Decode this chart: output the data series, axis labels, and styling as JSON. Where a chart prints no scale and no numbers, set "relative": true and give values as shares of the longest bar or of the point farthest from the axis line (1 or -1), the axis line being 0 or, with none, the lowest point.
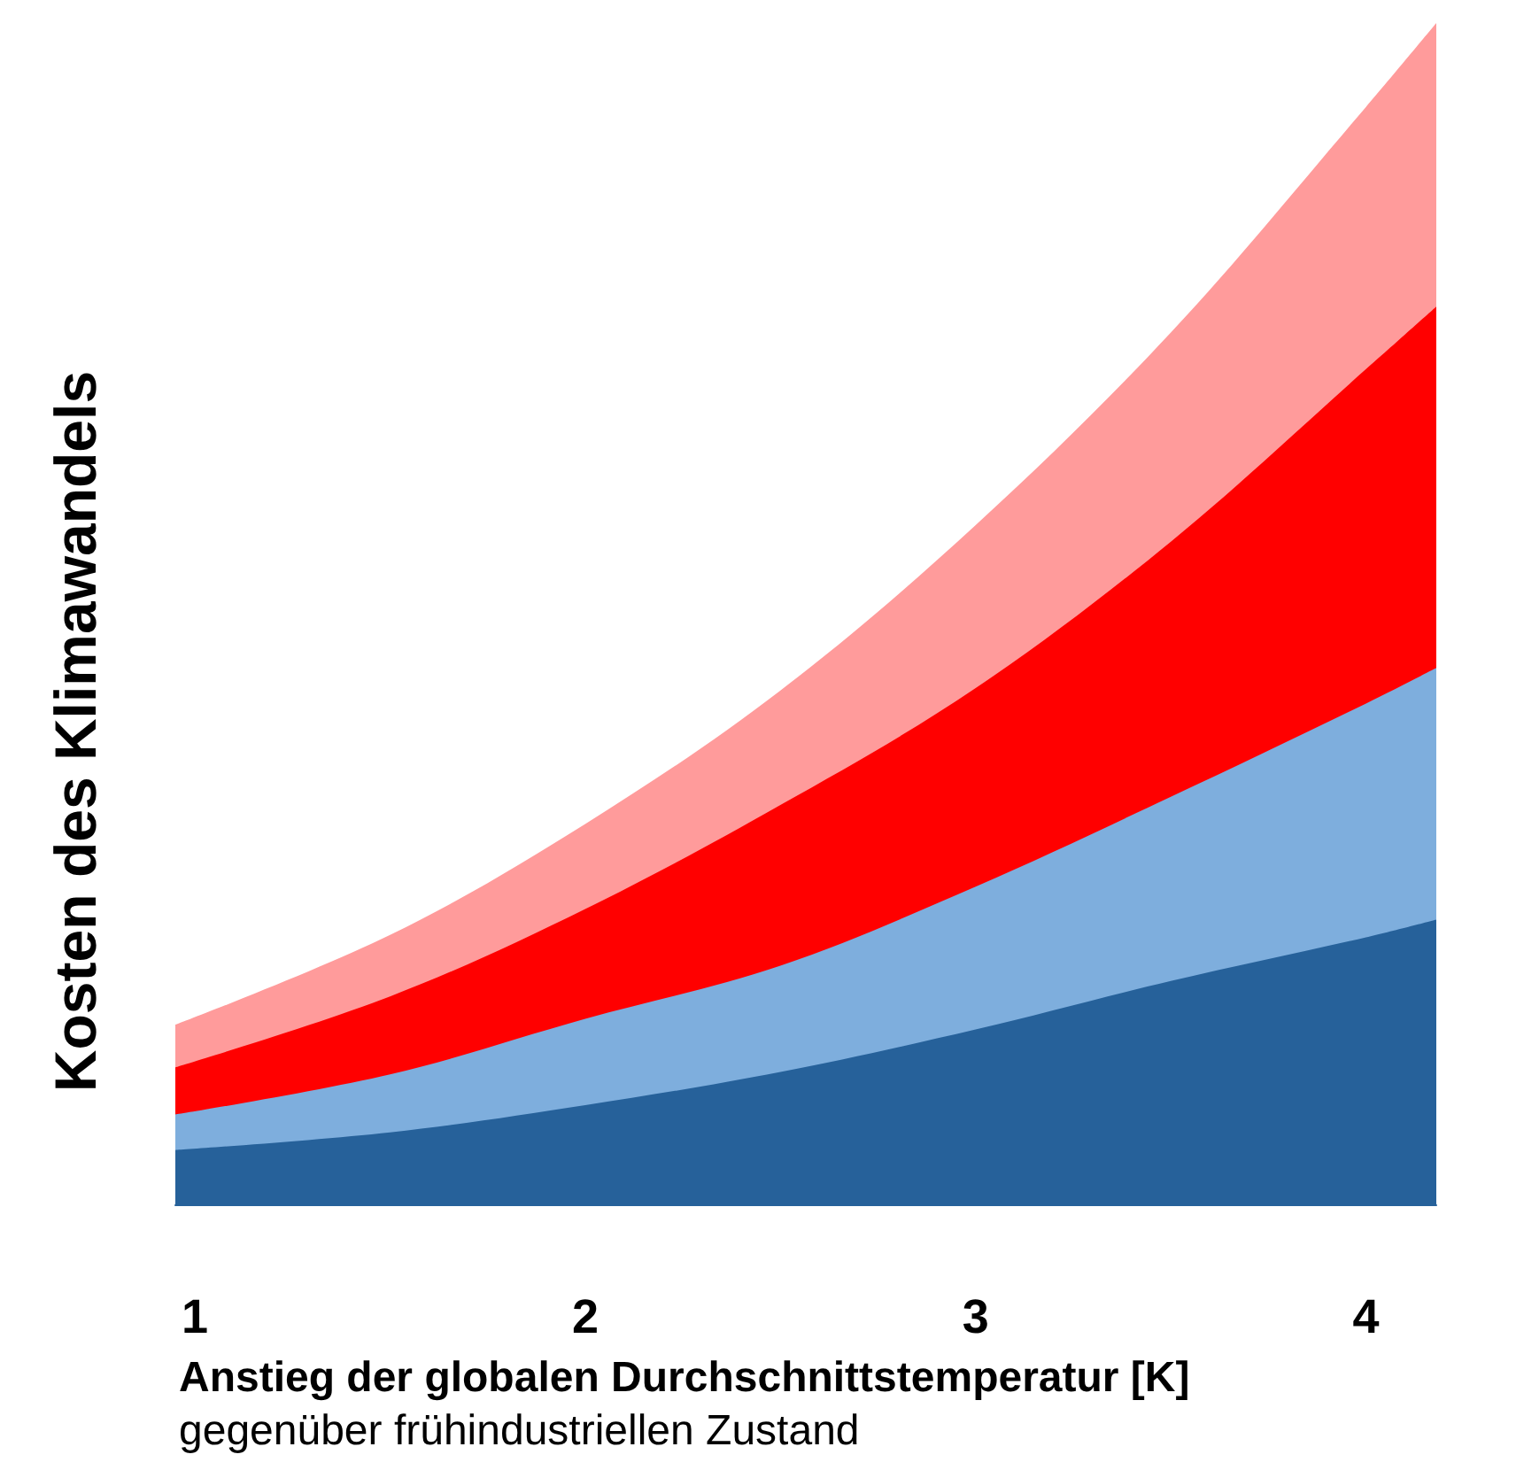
{
  "chart_data": {
    "type": "area",
    "relative": true,
    "stacked": true,
    "x": [
      0.95,
      1.5,
      2,
      2.5,
      3,
      3.5,
      4,
      4.18
    ],
    "xlim": [
      0.95,
      4.18
    ],
    "xticks": [
      1,
      2,
      3,
      4
    ],
    "xlabel": "Anstieg der globalen Durchschnittstemperatur [K]",
    "ylabel": "Kosten des Klimawandels",
    "annotations": [
      "gegenüber frühindustriellen Zustand"
    ],
    "tick_labels": "x",
    "grid": false,
    "series": [
      {
        "color": "#26619a",
        "values": [
          0.046,
          0.061,
          0.084,
          0.112,
          0.148,
          0.189,
          0.226,
          0.241
        ]
      },
      {
        "color": "#7eaedd",
        "values": [
          0.03,
          0.049,
          0.073,
          0.09,
          0.121,
          0.156,
          0.198,
          0.213
        ]
      },
      {
        "color": "#ff0000",
        "values": [
          0.04,
          0.066,
          0.093,
          0.136,
          0.168,
          0.216,
          0.283,
          0.306
        ]
      },
      {
        "color": "#ff9b9b",
        "values": [
          0.036,
          0.052,
          0.072,
          0.097,
          0.138,
          0.177,
          0.222,
          0.24
        ]
      }
    ]
  }
}
